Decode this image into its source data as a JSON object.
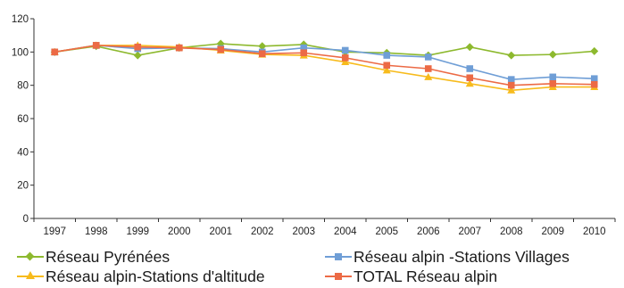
{
  "chart_data": {
    "type": "line",
    "title": "",
    "xlabel": "",
    "ylabel": "",
    "x": [
      "1997",
      "1998",
      "1999",
      "2000",
      "2001",
      "2002",
      "2003",
      "2004",
      "2005",
      "2006",
      "2007",
      "2008",
      "2009",
      "2010"
    ],
    "ylim": [
      0,
      120
    ],
    "yticks": [
      0,
      20,
      40,
      60,
      80,
      100,
      120
    ],
    "grid": false,
    "legend_position": "bottom",
    "series": [
      {
        "name": "Réseau Pyrénées",
        "color": "#8db92e",
        "marker": "diamond",
        "values": [
          100,
          103.5,
          98,
          102.5,
          105,
          103.5,
          104.5,
          100,
          99.5,
          98,
          103,
          98,
          98.5,
          100.5
        ]
      },
      {
        "name": "Réseau alpin -Stations Villages",
        "color": "#6f9ed6",
        "marker": "square",
        "values": [
          100,
          104,
          102,
          102.5,
          102,
          100,
          102.5,
          101,
          98,
          97,
          90,
          83.5,
          85,
          84
        ]
      },
      {
        "name": "Réseau alpin-Stations d'altitude",
        "color": "#f7bb1c",
        "marker": "triangle",
        "values": [
          100,
          104,
          104,
          103,
          101,
          98.5,
          98,
          94,
          89,
          85,
          81,
          77,
          79,
          79
        ]
      },
      {
        "name": "TOTAL Réseau alpin",
        "color": "#ec6a45",
        "marker": "square",
        "values": [
          100,
          104,
          103,
          102.5,
          101.5,
          99,
          99.5,
          96.5,
          92,
          90,
          84.5,
          80,
          81,
          80.5
        ]
      }
    ]
  }
}
